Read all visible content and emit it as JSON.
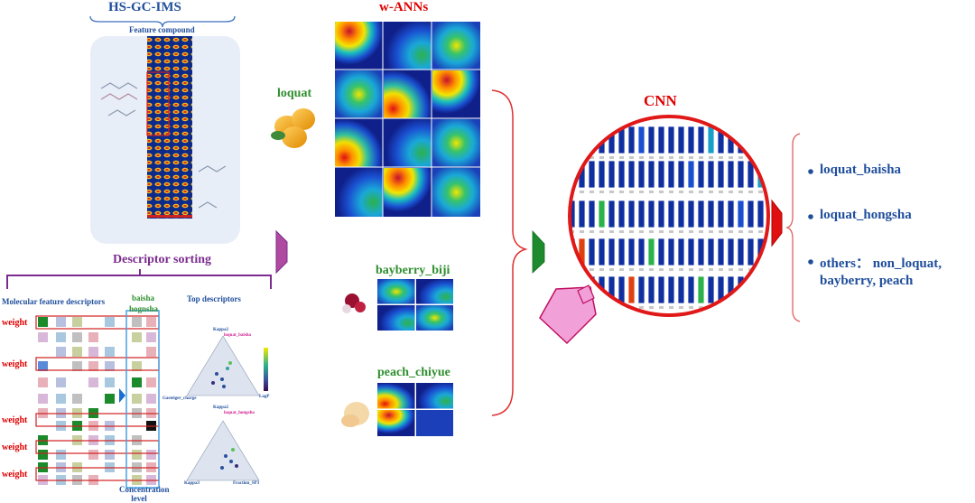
{
  "hsgcims": {
    "title": "HS-GC-IMS",
    "subtitle": "Feature compound"
  },
  "wanns": {
    "title": "w-ANNs"
  },
  "cnn": {
    "title": "CNN"
  },
  "fruits": {
    "loquat": "loquat",
    "bayberry": "bayberry_biji",
    "peach": "peach_chiyue"
  },
  "sorting": {
    "title": "Descriptor sorting",
    "molecular": "Molecular feature descriptors",
    "baisha": "baisha",
    "hognsha": "hognsha",
    "top": "Top descriptors",
    "weight": "weight",
    "concentration": "Concentration level"
  },
  "ternary1": {
    "top": "Kappa2",
    "label": "loquat_baisha",
    "left": "Gasteiger_charge",
    "right": "LogP"
  },
  "ternary2": {
    "top": "Kappa2",
    "label": "loquat_hongsha",
    "left": "Kappa3",
    "right": "Fraction_SP3"
  },
  "outputs": [
    {
      "line1": "loquat_baisha"
    },
    {
      "line1": "loquat_hongsha"
    },
    {
      "line1": "others： non_loquat,",
      "line2": "bayberry, peach"
    }
  ],
  "colors": {
    "title_blue": "#1f4e9c",
    "fruit_green": "#2f8f2f",
    "cnn_red": "#e00000",
    "sorting_purple": "#7b2c8e",
    "output_blue": "#1f4e9c"
  }
}
